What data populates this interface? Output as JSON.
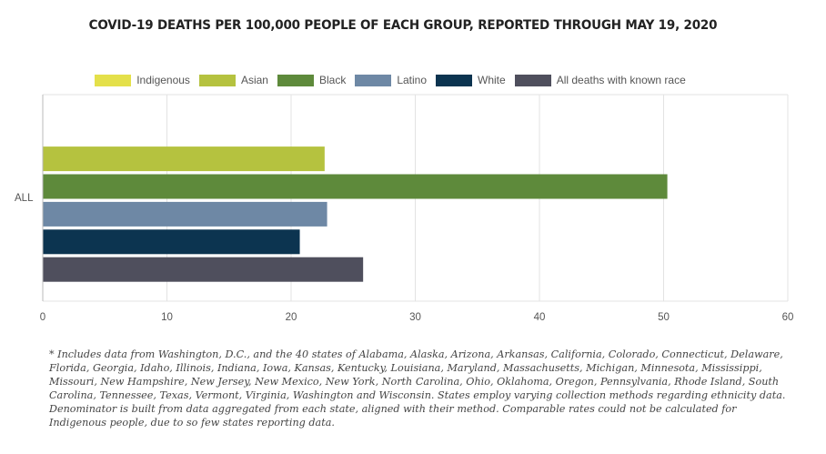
{
  "chart_data": {
    "type": "bar",
    "orientation": "horizontal",
    "title": "COVID-19 DEATHS PER 100,000 PEOPLE OF EACH GROUP, REPORTED THROUGH MAY 19, 2020",
    "categories": [
      "ALL"
    ],
    "series": [
      {
        "name": "Indigenous",
        "color": "#e4e04a",
        "values": [
          null
        ]
      },
      {
        "name": "Asian",
        "color": "#b5c23f",
        "values": [
          22.7
        ]
      },
      {
        "name": "Black",
        "color": "#5e8a3b",
        "values": [
          50.3
        ]
      },
      {
        "name": "Latino",
        "color": "#6e88a5",
        "values": [
          22.9
        ]
      },
      {
        "name": "White",
        "color": "#0c3450",
        "values": [
          20.7
        ]
      },
      {
        "name": "All deaths with known race",
        "color": "#4f4f5d",
        "values": [
          25.8
        ]
      }
    ],
    "xlim": [
      0,
      60
    ],
    "xticks": [
      0,
      10,
      20,
      30,
      40,
      50,
      60
    ],
    "grid": true,
    "legend": "top"
  },
  "footnote": "* Includes data from Washington, D.C., and the 40 states of Alabama, Alaska, Arizona, Arkansas, California, Colorado, Connecticut, Delaware, Florida, Georgia, Idaho, Illinois, Indiana, Iowa, Kansas, Kentucky, Louisiana, Maryland, Massachusetts, Michigan, Minnesota, Mississippi, Missouri, New Hampshire, New Jersey, New Mexico, New York, North Carolina, Ohio, Oklahoma, Oregon, Pennsylvania, Rhode Island, South Carolina, Tennessee, Texas, Vermont, Virginia, Washington and Wisconsin. States employ varying collection methods regarding ethnicity data. Denominator is built from data aggregated from each state, aligned with their method. Comparable rates could not be calculated for Indigenous people, due to so few states reporting data."
}
